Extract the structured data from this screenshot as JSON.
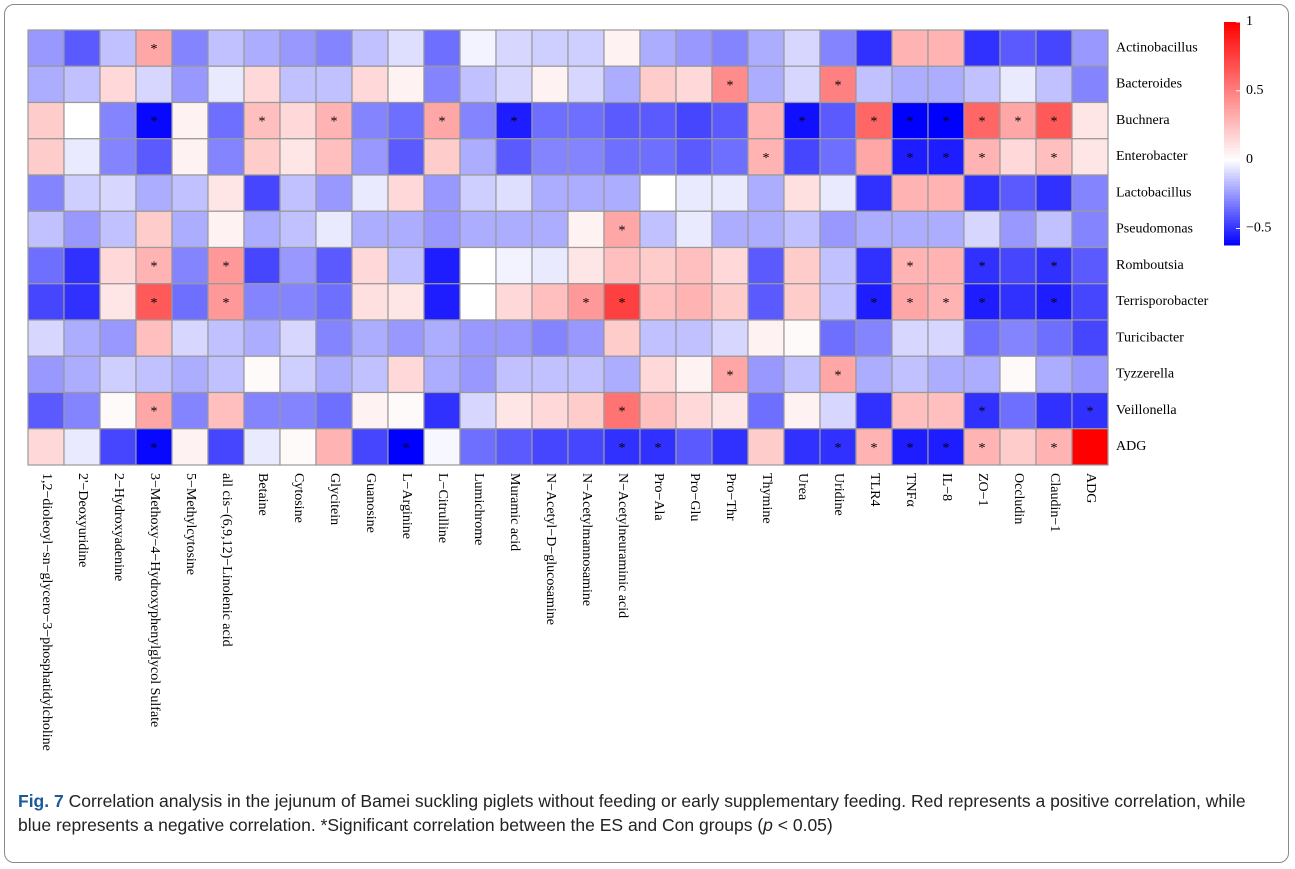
{
  "chart_data": {
    "type": "heatmap",
    "columns": [
      "1,2−dioleoyl−sn−glycero−3−phosphatidylcholine",
      "2'−Deoxyuridine",
      "2−Hydroxyadenine",
      "3−Methoxy−4−Hydroxyphenylglycol Sulfate",
      "5−Methylcytosine",
      "all cis−(6,9,12)−Linolenic acid",
      "Betaine",
      "Cytosine",
      "Glycitein",
      "Guanosine",
      "L−Arginine",
      "L−Citrulline",
      "Lumichrome",
      "Muramic acid",
      "N−Acetyl−D−glucosamine",
      "N−Acetylmannosamine",
      "N−Acetylneuraminic acid",
      "Pro−Ala",
      "Pro−Glu",
      "Pro−Thr",
      "Thymine",
      "Urea",
      "Uridine",
      "TLR4",
      "TNFα",
      "IL−8",
      "ZO−1",
      "Occludin",
      "Claudin−1",
      "ADG"
    ],
    "rows": [
      "Actinobacillus",
      "Bacteroides",
      "Buchnera",
      "Enterobacter",
      "Lactobacillus",
      "Pseudomonas",
      "Romboutsia",
      "Terrisporobacter",
      "Turicibacter",
      "Tyzzerella",
      "Veillonella",
      "ADG"
    ],
    "values": [
      [
        -0.25,
        -0.4,
        -0.15,
        0.35,
        -0.3,
        -0.15,
        -0.2,
        -0.25,
        -0.3,
        -0.15,
        -0.08,
        -0.35,
        -0.03,
        -0.1,
        -0.12,
        -0.12,
        0.05,
        -0.2,
        -0.25,
        -0.3,
        -0.2,
        -0.1,
        -0.3,
        -0.5,
        0.3,
        0.3,
        -0.5,
        -0.4,
        -0.45,
        -0.25
      ],
      [
        -0.2,
        -0.15,
        0.15,
        -0.1,
        -0.25,
        -0.05,
        0.15,
        -0.15,
        -0.15,
        0.15,
        0.05,
        -0.3,
        -0.15,
        -0.1,
        0.05,
        -0.1,
        -0.2,
        0.2,
        0.15,
        0.45,
        -0.2,
        -0.1,
        0.5,
        -0.15,
        -0.2,
        -0.2,
        -0.15,
        -0.05,
        -0.15,
        -0.3
      ],
      [
        0.2,
        0,
        -0.3,
        -0.6,
        0.05,
        -0.35,
        0.25,
        0.15,
        0.3,
        -0.3,
        -0.35,
        0.35,
        -0.3,
        -0.55,
        -0.35,
        -0.35,
        -0.4,
        -0.4,
        -0.45,
        -0.4,
        0.3,
        -0.58,
        -0.4,
        0.6,
        -0.62,
        -0.62,
        0.6,
        0.35,
        0.65,
        0.1
      ],
      [
        0.2,
        -0.05,
        -0.3,
        -0.4,
        0.05,
        -0.3,
        0.2,
        0.1,
        0.25,
        -0.25,
        -0.4,
        0.2,
        -0.2,
        -0.4,
        -0.3,
        -0.3,
        -0.35,
        -0.35,
        -0.4,
        -0.35,
        0.3,
        -0.45,
        -0.35,
        0.35,
        -0.55,
        -0.55,
        0.3,
        0.15,
        0.25,
        0.1
      ],
      [
        -0.3,
        -0.12,
        -0.1,
        -0.2,
        -0.15,
        0.1,
        -0.45,
        -0.15,
        -0.25,
        -0.05,
        0.15,
        -0.25,
        -0.12,
        -0.08,
        -0.2,
        -0.2,
        -0.2,
        0,
        -0.05,
        -0.05,
        -0.2,
        0.12,
        -0.05,
        -0.5,
        0.3,
        0.3,
        -0.5,
        -0.4,
        -0.5,
        -0.3
      ],
      [
        -0.15,
        -0.25,
        -0.15,
        0.2,
        -0.2,
        0.05,
        -0.2,
        -0.15,
        -0.05,
        -0.2,
        -0.2,
        -0.25,
        -0.2,
        -0.2,
        -0.2,
        0.05,
        0.35,
        -0.15,
        -0.05,
        -0.2,
        -0.2,
        -0.15,
        -0.25,
        -0.2,
        -0.2,
        -0.2,
        -0.1,
        -0.25,
        -0.15,
        -0.3
      ],
      [
        -0.35,
        -0.5,
        0.15,
        0.3,
        -0.3,
        0.4,
        -0.45,
        -0.25,
        -0.4,
        0.15,
        -0.15,
        -0.55,
        0,
        -0.03,
        -0.05,
        0.1,
        0.25,
        0.2,
        0.25,
        0.15,
        -0.4,
        0.2,
        -0.15,
        -0.5,
        0.3,
        0.3,
        -0.5,
        -0.45,
        -0.5,
        -0.4
      ],
      [
        -0.45,
        -0.5,
        0.1,
        0.65,
        -0.35,
        0.4,
        -0.3,
        -0.3,
        -0.35,
        0.12,
        0.1,
        -0.55,
        0,
        0.15,
        0.25,
        0.4,
        0.75,
        0.25,
        0.3,
        0.2,
        -0.4,
        0.2,
        -0.15,
        -0.55,
        0.35,
        0.3,
        -0.55,
        -0.5,
        -0.55,
        -0.45
      ],
      [
        -0.1,
        -0.2,
        -0.25,
        0.25,
        -0.1,
        -0.15,
        -0.2,
        -0.1,
        -0.3,
        -0.2,
        -0.25,
        -0.2,
        -0.25,
        -0.25,
        -0.3,
        -0.25,
        0.2,
        -0.15,
        -0.15,
        -0.1,
        0.05,
        0.02,
        -0.35,
        -0.3,
        -0.1,
        -0.1,
        -0.35,
        -0.3,
        -0.35,
        -0.45
      ],
      [
        -0.25,
        -0.2,
        -0.12,
        -0.15,
        -0.2,
        -0.15,
        0.02,
        -0.12,
        -0.2,
        -0.15,
        0.15,
        -0.2,
        -0.25,
        -0.15,
        -0.15,
        -0.15,
        -0.2,
        0.15,
        0.05,
        0.35,
        -0.25,
        -0.15,
        0.35,
        -0.2,
        -0.15,
        -0.2,
        -0.2,
        0.02,
        -0.2,
        -0.25
      ],
      [
        -0.4,
        -0.3,
        0.02,
        0.35,
        -0.3,
        0.25,
        -0.3,
        -0.3,
        -0.35,
        0.05,
        0.02,
        -0.5,
        -0.1,
        0.1,
        0.15,
        0.2,
        0.55,
        0.25,
        0.15,
        0.1,
        -0.35,
        0.05,
        -0.1,
        -0.5,
        0.25,
        0.25,
        -0.5,
        -0.35,
        -0.5,
        -0.5
      ],
      [
        0.15,
        -0.05,
        -0.45,
        -0.6,
        0.05,
        -0.45,
        -0.05,
        0.02,
        0.3,
        -0.45,
        -0.62,
        -0.02,
        -0.35,
        -0.4,
        -0.45,
        -0.45,
        -0.5,
        -0.5,
        -0.4,
        -0.5,
        0.2,
        -0.5,
        -0.5,
        0.3,
        -0.55,
        -0.55,
        0.3,
        0.2,
        0.3,
        1
      ]
    ],
    "stars": [
      [
        null,
        null,
        null,
        "*",
        null,
        null,
        null,
        null,
        null,
        null,
        null,
        null,
        null,
        null,
        null,
        null,
        null,
        null,
        null,
        null,
        null,
        null,
        null,
        null,
        null,
        null,
        null,
        null,
        null,
        null
      ],
      [
        null,
        null,
        null,
        null,
        null,
        null,
        null,
        null,
        null,
        null,
        null,
        null,
        null,
        null,
        null,
        null,
        null,
        null,
        null,
        "*",
        null,
        null,
        "*",
        null,
        null,
        null,
        null,
        null,
        null,
        null
      ],
      [
        null,
        null,
        null,
        "*",
        null,
        null,
        "*",
        null,
        "*",
        null,
        null,
        "*",
        null,
        "*",
        null,
        null,
        null,
        null,
        null,
        null,
        null,
        "*",
        null,
        "*",
        "*",
        "*",
        "*",
        "*",
        "*",
        null
      ],
      [
        null,
        null,
        null,
        null,
        null,
        null,
        null,
        null,
        null,
        null,
        null,
        null,
        null,
        null,
        null,
        null,
        null,
        null,
        null,
        null,
        "*",
        null,
        null,
        null,
        "*",
        "*",
        "*",
        null,
        "*",
        null
      ],
      [
        null,
        null,
        null,
        null,
        null,
        null,
        null,
        null,
        null,
        null,
        null,
        null,
        null,
        null,
        null,
        null,
        null,
        null,
        null,
        null,
        null,
        null,
        null,
        null,
        null,
        null,
        null,
        null,
        null,
        null
      ],
      [
        null,
        null,
        null,
        null,
        null,
        null,
        null,
        null,
        null,
        null,
        null,
        null,
        null,
        null,
        null,
        null,
        "*",
        null,
        null,
        null,
        null,
        null,
        null,
        null,
        null,
        null,
        null,
        null,
        null,
        null
      ],
      [
        null,
        null,
        null,
        "*",
        null,
        "*",
        null,
        null,
        null,
        null,
        null,
        null,
        null,
        null,
        null,
        null,
        null,
        null,
        null,
        null,
        null,
        null,
        null,
        null,
        "*",
        null,
        "*",
        null,
        "*",
        null
      ],
      [
        null,
        null,
        null,
        "*",
        null,
        "*",
        null,
        null,
        null,
        null,
        null,
        null,
        null,
        null,
        null,
        "*",
        "*",
        null,
        null,
        null,
        null,
        null,
        null,
        "*",
        "*",
        "*",
        "*",
        null,
        "*",
        null
      ],
      [
        null,
        null,
        null,
        null,
        null,
        null,
        null,
        null,
        null,
        null,
        null,
        null,
        null,
        null,
        null,
        null,
        null,
        null,
        null,
        null,
        null,
        null,
        null,
        null,
        null,
        null,
        null,
        null,
        null,
        null
      ],
      [
        null,
        null,
        null,
        null,
        null,
        null,
        null,
        null,
        null,
        null,
        null,
        null,
        null,
        null,
        null,
        null,
        null,
        null,
        null,
        "*",
        null,
        null,
        "*",
        null,
        null,
        null,
        null,
        null,
        null,
        null
      ],
      [
        null,
        null,
        null,
        "*",
        null,
        null,
        null,
        null,
        null,
        null,
        null,
        null,
        null,
        null,
        null,
        null,
        "*",
        null,
        null,
        null,
        null,
        null,
        null,
        null,
        null,
        null,
        "*",
        null,
        null,
        "*"
      ],
      [
        null,
        null,
        null,
        "*",
        null,
        null,
        null,
        null,
        null,
        null,
        "*",
        null,
        null,
        null,
        null,
        null,
        "*",
        "*",
        null,
        null,
        null,
        null,
        "*",
        "*",
        "*",
        "*",
        "*",
        null,
        "*",
        null
      ]
    ],
    "zlim": [
      -0.62,
      1
    ],
    "colors": {
      "low": "#0000ff",
      "mid": "#ffffff",
      "high": "#ff0000"
    },
    "zticks": [
      {
        "value": -0.5,
        "label": "−0.5"
      },
      0,
      0.5,
      1
    ]
  },
  "caption": {
    "label": "Fig. 7",
    "text": "Correlation analysis in the jejunum of Bamei suckling piglets without feeding or early supplementary feeding. Red represents a positive correlation, while blue represents a negative correlation. *Significant correlation between the ES and Con groups (",
    "italic": "p",
    "end": " < 0.05)"
  }
}
